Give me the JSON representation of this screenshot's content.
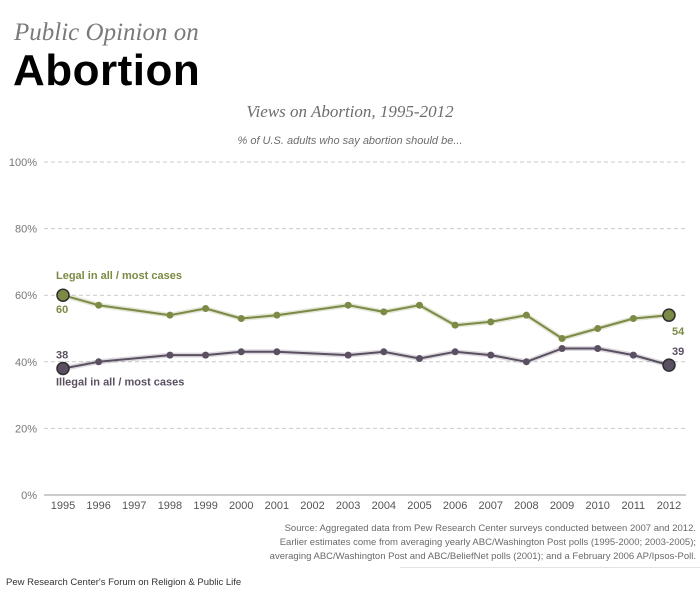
{
  "header": {
    "kicker": "Public Opinion on",
    "title": "Abortion"
  },
  "chart_data": {
    "type": "line",
    "title": "Views on Abortion, 1995-2012",
    "subtitle": "% of U.S. adults who say abortion should be...",
    "categories": [
      "1995",
      "1996",
      "1997",
      "1998",
      "1999",
      "2000",
      "2001",
      "2002",
      "2003",
      "2004",
      "2005",
      "2006",
      "2007",
      "2008",
      "2009",
      "2010",
      "2011",
      "2012"
    ],
    "series": [
      {
        "name": "Legal in all / most cases",
        "color": "#7b8a44",
        "values": [
          60,
          57,
          null,
          54,
          56,
          53,
          54,
          null,
          57,
          55,
          57,
          51,
          52,
          54,
          47,
          50,
          53,
          54
        ],
        "start_label": "60",
        "end_label": "54"
      },
      {
        "name": "Illegal in all / most cases",
        "color": "#5a5062",
        "values": [
          38,
          40,
          null,
          42,
          42,
          43,
          43,
          null,
          42,
          43,
          41,
          43,
          42,
          40,
          44,
          44,
          42,
          39
        ],
        "start_label": "38",
        "end_label": "39"
      }
    ],
    "yticks": [
      "0%",
      "20%",
      "40%",
      "60%",
      "80%",
      "100%"
    ],
    "ylim": [
      0,
      100
    ],
    "grid": true,
    "legend": "direct labels on lines"
  },
  "source": {
    "lines": [
      "Source: Aggregated data from Pew Research Center surveys conducted between 2007 and 2012.",
      "Earlier estimates come from averaging yearly ABC/Washington Post polls (1995-2000; 2003-2005);",
      "averaging ABC/Washington Post and ABC/BeliefNet polls (2001); and a February 2006 AP/Ipsos-Poll."
    ]
  },
  "footer": {
    "text": "Pew Research Center's Forum on Religion & Public Life"
  }
}
